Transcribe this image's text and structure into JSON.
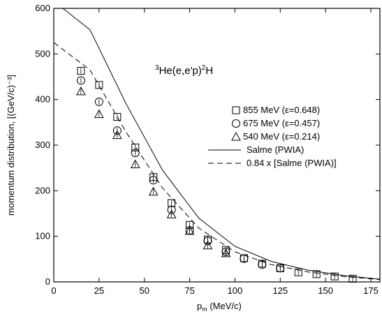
{
  "chart_data": {
    "type": "scatter",
    "xlabel": {
      "main": "p",
      "sub": "m",
      "rest": " (MeV/c)"
    },
    "ylabel": "momentum distribution, [(GeV/c)⁻³]",
    "xlim": [
      0,
      180
    ],
    "ylim": [
      0,
      600
    ],
    "xticks": [
      0,
      25,
      50,
      75,
      100,
      125,
      150,
      175
    ],
    "yticks": [
      0,
      100,
      200,
      300,
      400,
      500,
      600
    ],
    "annotation": {
      "pre": "3",
      "main1": "He(e,e'p)",
      "mid": "2",
      "main2": "H"
    },
    "legend_position": "right",
    "series": [
      {
        "name": "855 MeV (ε=0.648)",
        "marker": "square",
        "x": [
          15,
          25,
          35,
          45,
          55,
          65,
          75,
          85,
          95,
          105,
          115,
          125,
          135,
          145,
          155,
          165
        ],
        "y": [
          463,
          432,
          362,
          295,
          230,
          173,
          125,
          93,
          70,
          52,
          40,
          30,
          21,
          17,
          12,
          7
        ]
      },
      {
        "name": "675 MeV (ε=0.457)",
        "marker": "circle",
        "x": [
          15,
          25,
          35,
          45,
          55,
          65,
          75,
          85,
          95,
          105,
          115,
          125
        ],
        "y": [
          442,
          395,
          332,
          283,
          223,
          158,
          113,
          90,
          66,
          51,
          38,
          30
        ]
      },
      {
        "name": "540 MeV (ε=0.214)",
        "marker": "triangle",
        "x": [
          15,
          25,
          35,
          45,
          55,
          65,
          75,
          85,
          95
        ],
        "y": [
          418,
          368,
          322,
          258,
          198,
          148,
          112,
          80,
          63
        ]
      },
      {
        "name": "Salme (PWIA)",
        "style": "solid",
        "x": [
          5,
          20,
          40,
          60,
          80,
          100,
          120,
          140,
          160,
          180
        ],
        "y": [
          600,
          553,
          390,
          245,
          140,
          78,
          45,
          26,
          14,
          6
        ]
      },
      {
        "name": "0.84 x [Salme (PWIA)]",
        "style": "dashed",
        "x": [
          0,
          20,
          40,
          60,
          80,
          100,
          120,
          140,
          160,
          180
        ],
        "y": [
          525,
          465,
          328,
          206,
          118,
          66,
          38,
          22,
          12,
          5
        ]
      }
    ]
  }
}
